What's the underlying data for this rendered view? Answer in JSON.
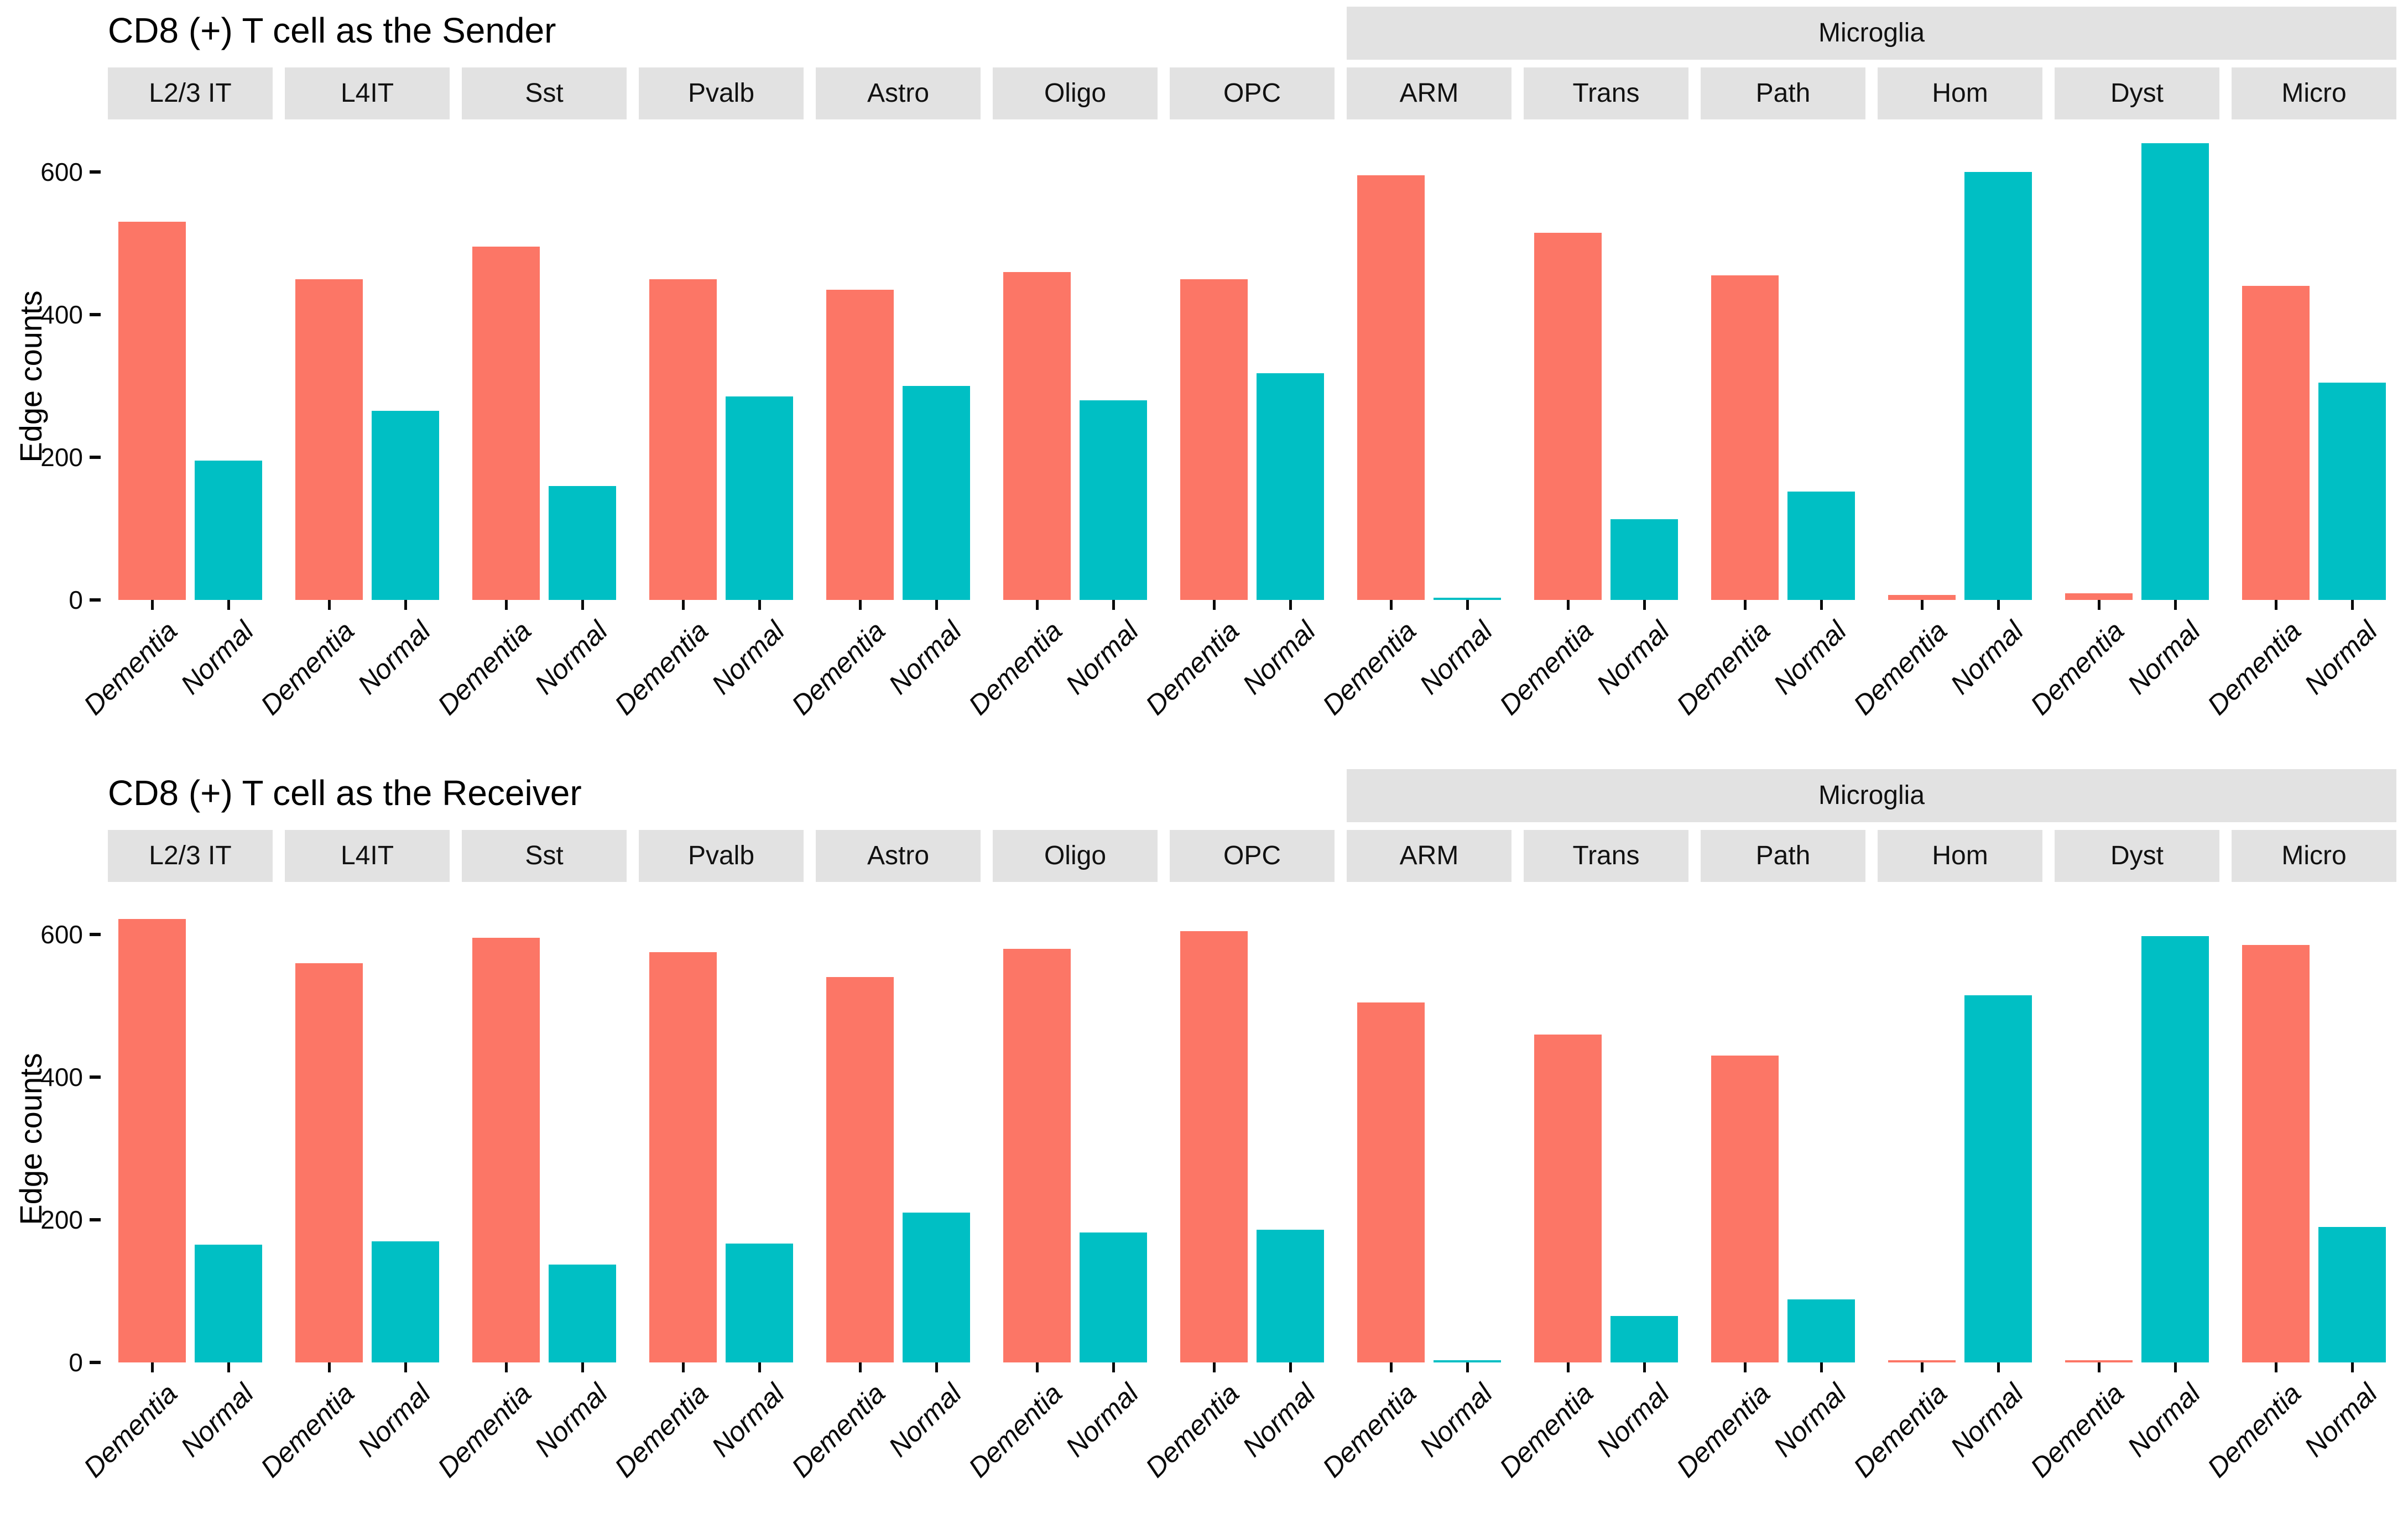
{
  "colors": {
    "dementia_bar": "#FC7666",
    "normal_bar": "#00BFC4",
    "facet_strip_bg": "#E2E2E2",
    "text": "#000000"
  },
  "chart_data": [
    {
      "type": "bar",
      "title": "CD8 (+) T cell as the Sender",
      "ylabel": "Edge counts",
      "group_label": "Microglia",
      "group_start_index": 7,
      "facets": [
        "L2/3 IT",
        "L4IT",
        "Sst",
        "Pvalb",
        "Astro",
        "Oligo",
        "OPC",
        "ARM",
        "Trans",
        "Path",
        "Hom",
        "Dyst",
        "Micro"
      ],
      "x_categories": [
        "Dementia",
        "Normal"
      ],
      "yticks": [
        0,
        200,
        400,
        600
      ],
      "ylim": [
        0,
        680
      ],
      "grid": false,
      "legend": "none",
      "series": [
        {
          "name": "Dementia",
          "color": "#FC7666",
          "values": [
            530,
            450,
            495,
            450,
            435,
            460,
            450,
            595,
            515,
            455,
            7,
            9,
            440
          ]
        },
        {
          "name": "Normal",
          "color": "#00BFC4",
          "values": [
            195,
            265,
            160,
            285,
            300,
            280,
            318,
            2,
            113,
            152,
            600,
            640,
            305
          ]
        }
      ]
    },
    {
      "type": "bar",
      "title": "CD8 (+) T cell as the Receiver",
      "ylabel": "Edge counts",
      "group_label": "Microglia",
      "group_start_index": 7,
      "facets": [
        "L2/3 IT",
        "L4IT",
        "Sst",
        "Pvalb",
        "Astro",
        "Oligo",
        "OPC",
        "ARM",
        "Trans",
        "Path",
        "Hom",
        "Dyst",
        "Micro"
      ],
      "x_categories": [
        "Dementia",
        "Normal"
      ],
      "yticks": [
        0,
        200,
        400,
        600
      ],
      "ylim": [
        0,
        660
      ],
      "grid": false,
      "legend": "none",
      "series": [
        {
          "name": "Dementia",
          "color": "#FC7666",
          "values": [
            622,
            560,
            595,
            575,
            540,
            580,
            605,
            505,
            460,
            430,
            2,
            2,
            585
          ]
        },
        {
          "name": "Normal",
          "color": "#00BFC4",
          "values": [
            165,
            170,
            137,
            167,
            210,
            182,
            186,
            2,
            65,
            88,
            515,
            598,
            190
          ]
        }
      ]
    }
  ]
}
